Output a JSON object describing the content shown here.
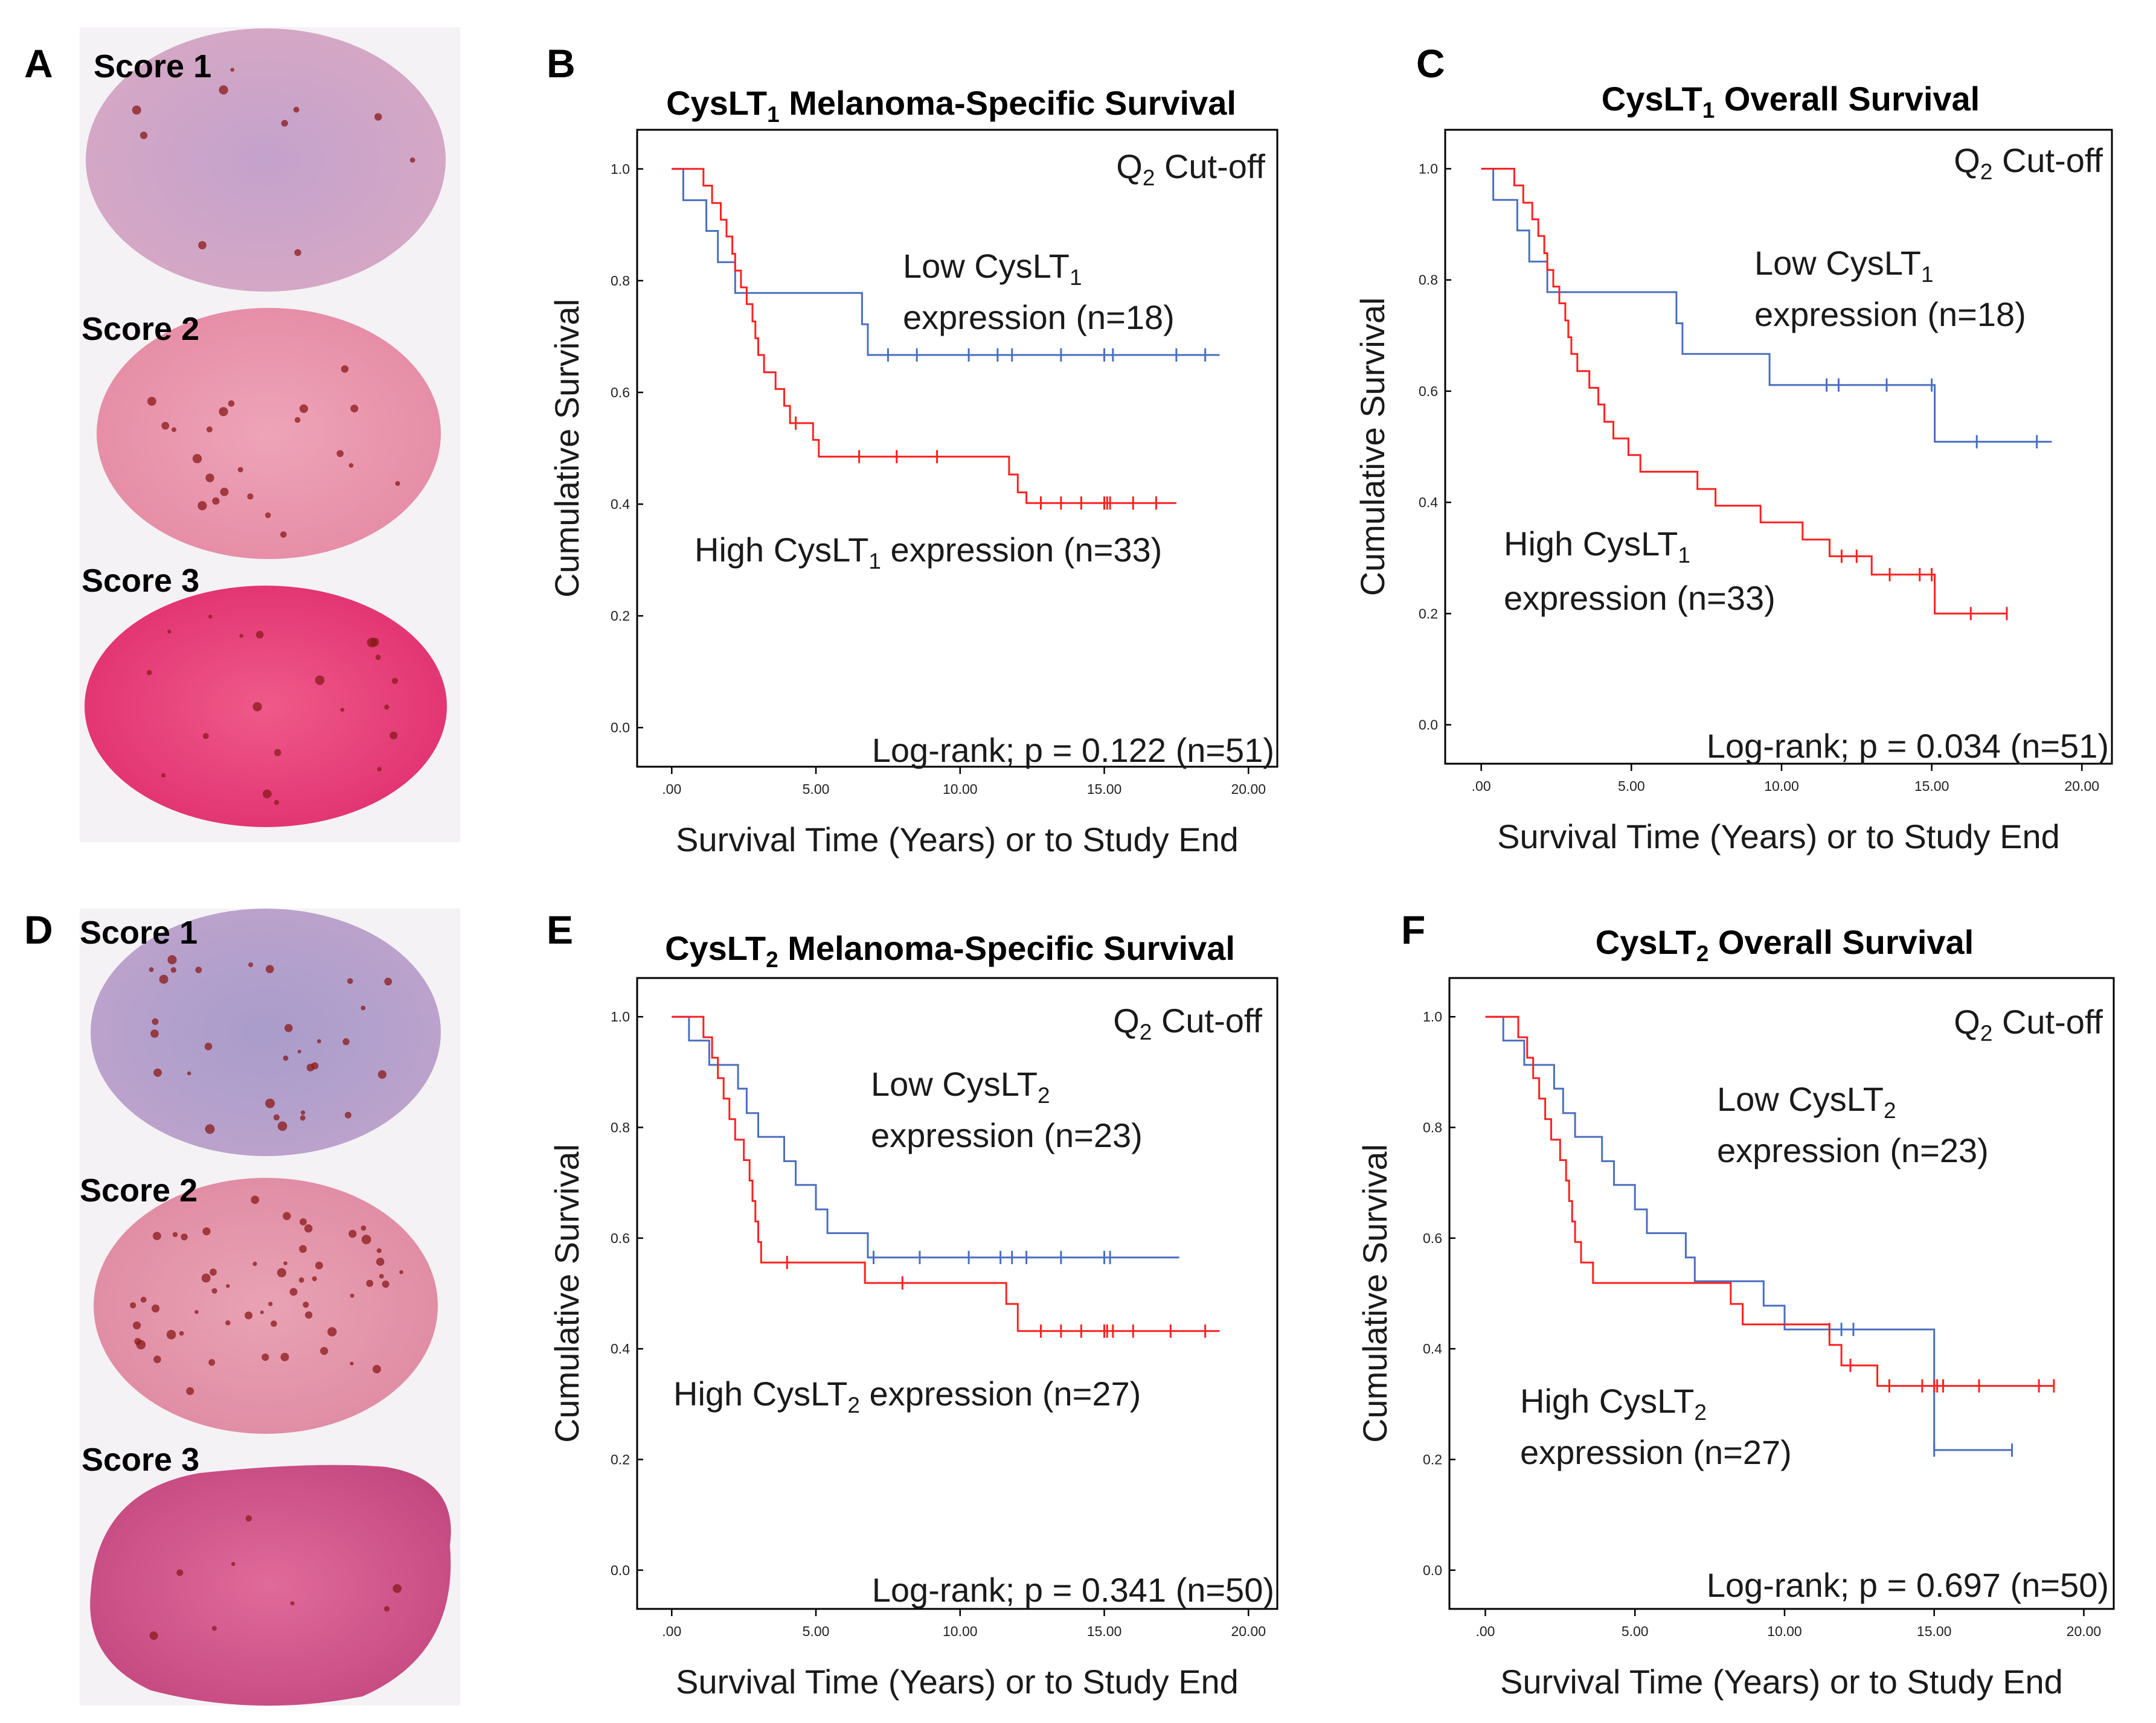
{
  "colors": {
    "low": "#4a6fc0",
    "high": "#ff2020",
    "frame": "#000000",
    "tissue_light": "#d9a9c6",
    "tissue_mid": "#ea8aa8",
    "tissue_dark": "#e8437a",
    "stain_dot": "#8a1a1a"
  },
  "tissue": {
    "cysLT1": {
      "letter": "A",
      "scores": [
        "Score 1",
        "Score 2",
        "Score 3"
      ]
    },
    "cysLT2": {
      "letter": "D",
      "scores": [
        "Score 1",
        "Score 2",
        "Score 3"
      ]
    }
  },
  "chart_data": [
    {
      "letter": "B",
      "type": "line",
      "subtype": "kaplan-meier",
      "title": {
        "pre": "CysLT",
        "sub": "1",
        "post": " Melanoma-Specific Survival"
      },
      "xlabel": "Survival Time (Years) or to Study End",
      "ylabel": "Cumulative Survival",
      "xlim": [
        -1.2,
        21
      ],
      "ylim": [
        -0.07,
        1.07
      ],
      "xticks": [
        0,
        5,
        10,
        15,
        20
      ],
      "xtick_labels": [
        ".00",
        "5.00",
        "10.00",
        "15.00",
        "20.00"
      ],
      "yticks": [
        0,
        0.2,
        0.4,
        0.6,
        0.8,
        1.0
      ],
      "ytick_labels": [
        "0.0",
        "0.2",
        "0.4",
        "0.6",
        "0.8",
        "1.0"
      ],
      "cutoff": {
        "pre": "Q",
        "sub": "2",
        "post": " Cut-off"
      },
      "logrank": "Log-rank; p = 0.122 (n=51)",
      "annotations": [
        {
          "series": "low",
          "lines": [
            {
              "pre": "Low CysLT",
              "sub": "1",
              "post": ""
            },
            {
              "pre": "expression (n=18)",
              "sub": "",
              "post": ""
            }
          ]
        },
        {
          "series": "high",
          "lines": [
            {
              "pre": "High CysLT",
              "sub": "1",
              "post": " expression (n=33)"
            }
          ]
        }
      ],
      "series": [
        {
          "name": "Low",
          "key": "low",
          "steps": [
            [
              0,
              1.0
            ],
            [
              0.4,
              0.944
            ],
            [
              1.2,
              0.889
            ],
            [
              1.6,
              0.833
            ],
            [
              2.2,
              0.778
            ],
            [
              6.6,
              0.722
            ],
            [
              6.8,
              0.667
            ],
            [
              19.0,
              0.667
            ]
          ],
          "censored": [
            7.5,
            8.5,
            10.3,
            11.3,
            11.8,
            13.5,
            15.0,
            15.3,
            17.5,
            18.5
          ]
        },
        {
          "name": "High",
          "key": "high",
          "steps": [
            [
              0,
              1.0
            ],
            [
              1.1,
              0.97
            ],
            [
              1.4,
              0.939
            ],
            [
              1.7,
              0.909
            ],
            [
              1.9,
              0.879
            ],
            [
              2.1,
              0.848
            ],
            [
              2.2,
              0.818
            ],
            [
              2.4,
              0.788
            ],
            [
              2.6,
              0.758
            ],
            [
              2.8,
              0.727
            ],
            [
              2.9,
              0.697
            ],
            [
              3.0,
              0.667
            ],
            [
              3.2,
              0.636
            ],
            [
              3.6,
              0.606
            ],
            [
              3.9,
              0.576
            ],
            [
              4.1,
              0.545
            ],
            [
              4.9,
              0.515
            ],
            [
              5.1,
              0.485
            ],
            [
              11.7,
              0.453
            ],
            [
              12.0,
              0.421
            ],
            [
              12.3,
              0.402
            ],
            [
              17.5,
              0.402
            ]
          ],
          "censored": [
            4.3,
            6.5,
            7.8,
            9.2,
            12.8,
            13.5,
            14.2,
            15.0,
            15.1,
            15.2,
            16.0,
            16.8
          ]
        }
      ]
    },
    {
      "letter": "C",
      "type": "line",
      "subtype": "kaplan-meier",
      "title": {
        "pre": "CysLT",
        "sub": "1",
        "post": " Overall Survival"
      },
      "xlabel": "Survival Time (Years) or to Study End",
      "ylabel": "Cumulative Survival",
      "xlim": [
        -1.2,
        21
      ],
      "ylim": [
        -0.07,
        1.07
      ],
      "xticks": [
        0,
        5,
        10,
        15,
        20
      ],
      "xtick_labels": [
        ".00",
        "5.00",
        "10.00",
        "15.00",
        "20.00"
      ],
      "yticks": [
        0,
        0.2,
        0.4,
        0.6,
        0.8,
        1.0
      ],
      "ytick_labels": [
        "0.0",
        "0.2",
        "0.4",
        "0.6",
        "0.8",
        "1.0"
      ],
      "cutoff": {
        "pre": "Q",
        "sub": "2",
        "post": " Cut-off"
      },
      "logrank": "Log-rank; p = 0.034 (n=51)",
      "annotations": [
        {
          "series": "low",
          "lines": [
            {
              "pre": "Low CysLT",
              "sub": "1",
              "post": ""
            },
            {
              "pre": "expression (n=18)",
              "sub": "",
              "post": ""
            }
          ]
        },
        {
          "series": "high",
          "lines": [
            {
              "pre": "High CysLT",
              "sub": "1",
              "post": ""
            },
            {
              "pre": "expression (n=33)",
              "sub": "",
              "post": ""
            }
          ]
        }
      ],
      "series": [
        {
          "name": "Low",
          "key": "low",
          "steps": [
            [
              0,
              1.0
            ],
            [
              0.4,
              0.944
            ],
            [
              1.2,
              0.889
            ],
            [
              1.6,
              0.833
            ],
            [
              2.2,
              0.778
            ],
            [
              6.5,
              0.722
            ],
            [
              6.7,
              0.667
            ],
            [
              9.6,
              0.611
            ],
            [
              15.1,
              0.509
            ],
            [
              19.0,
              0.509
            ]
          ],
          "censored": [
            11.5,
            11.9,
            13.5,
            15.0,
            16.5,
            18.5
          ]
        },
        {
          "name": "High",
          "key": "high",
          "steps": [
            [
              0,
              1.0
            ],
            [
              1.1,
              0.97
            ],
            [
              1.4,
              0.939
            ],
            [
              1.7,
              0.909
            ],
            [
              1.9,
              0.879
            ],
            [
              2.1,
              0.848
            ],
            [
              2.2,
              0.818
            ],
            [
              2.4,
              0.788
            ],
            [
              2.6,
              0.758
            ],
            [
              2.8,
              0.727
            ],
            [
              2.9,
              0.697
            ],
            [
              3.0,
              0.667
            ],
            [
              3.2,
              0.636
            ],
            [
              3.6,
              0.606
            ],
            [
              3.9,
              0.576
            ],
            [
              4.1,
              0.545
            ],
            [
              4.4,
              0.515
            ],
            [
              4.9,
              0.485
            ],
            [
              5.3,
              0.455
            ],
            [
              7.2,
              0.424
            ],
            [
              7.8,
              0.394
            ],
            [
              9.3,
              0.364
            ],
            [
              10.7,
              0.333
            ],
            [
              11.6,
              0.303
            ],
            [
              13.0,
              0.27
            ],
            [
              15.1,
              0.2
            ],
            [
              17.5,
              0.2
            ]
          ],
          "censored": [
            12.0,
            12.5,
            13.6,
            14.6,
            15.0,
            16.3,
            17.5
          ]
        }
      ]
    },
    {
      "letter": "E",
      "type": "line",
      "subtype": "kaplan-meier",
      "title": {
        "pre": "CysLT",
        "sub": "2",
        "post": " Melanoma-Specific Survival"
      },
      "xlabel": "Survival Time (Years) or to Study End",
      "ylabel": "Cumulative Survival",
      "xlim": [
        -1.2,
        21
      ],
      "ylim": [
        -0.07,
        1.07
      ],
      "xticks": [
        0,
        5,
        10,
        15,
        20
      ],
      "xtick_labels": [
        ".00",
        "5.00",
        "10.00",
        "15.00",
        "20.00"
      ],
      "yticks": [
        0,
        0.2,
        0.4,
        0.6,
        0.8,
        1.0
      ],
      "ytick_labels": [
        "0.0",
        "0.2",
        "0.4",
        "0.6",
        "0.8",
        "1.0"
      ],
      "cutoff": {
        "pre": "Q",
        "sub": "2",
        "post": " Cut-off"
      },
      "logrank": "Log-rank; p = 0.341 (n=50)",
      "annotations": [
        {
          "series": "low",
          "lines": [
            {
              "pre": "Low CysLT",
              "sub": "2",
              "post": ""
            },
            {
              "pre": "expression (n=23)",
              "sub": "",
              "post": ""
            }
          ]
        },
        {
          "series": "high",
          "lines": [
            {
              "pre": "High CysLT",
              "sub": "2",
              "post": " expression (n=27)"
            }
          ]
        }
      ],
      "series": [
        {
          "name": "Low",
          "key": "low",
          "steps": [
            [
              0,
              1.0
            ],
            [
              0.6,
              0.957
            ],
            [
              1.3,
              0.913
            ],
            [
              2.3,
              0.87
            ],
            [
              2.6,
              0.826
            ],
            [
              3.0,
              0.783
            ],
            [
              3.9,
              0.739
            ],
            [
              4.3,
              0.696
            ],
            [
              5.0,
              0.652
            ],
            [
              5.4,
              0.609
            ],
            [
              6.8,
              0.565
            ],
            [
              17.6,
              0.565
            ]
          ],
          "censored": [
            7.0,
            8.6,
            10.3,
            11.4,
            11.8,
            12.3,
            13.5,
            15.0,
            15.2
          ]
        },
        {
          "name": "High",
          "key": "high",
          "steps": [
            [
              0,
              1.0
            ],
            [
              1.1,
              0.963
            ],
            [
              1.4,
              0.926
            ],
            [
              1.6,
              0.889
            ],
            [
              1.8,
              0.852
            ],
            [
              2.0,
              0.815
            ],
            [
              2.2,
              0.778
            ],
            [
              2.5,
              0.741
            ],
            [
              2.7,
              0.704
            ],
            [
              2.8,
              0.667
            ],
            [
              2.9,
              0.63
            ],
            [
              3.0,
              0.593
            ],
            [
              3.1,
              0.556
            ],
            [
              6.7,
              0.519
            ],
            [
              11.6,
              0.481
            ],
            [
              12.0,
              0.432
            ],
            [
              19.0,
              0.432
            ]
          ],
          "censored": [
            4.0,
            8.0,
            12.8,
            13.5,
            14.2,
            15.0,
            15.1,
            15.3,
            16.0,
            17.3,
            18.5
          ]
        }
      ]
    },
    {
      "letter": "F",
      "type": "line",
      "subtype": "kaplan-meier",
      "title": {
        "pre": "CysLT",
        "sub": "2",
        "post": " Overall Survival"
      },
      "xlabel": "Survival Time (Years) or to Study End",
      "ylabel": "Cumulative Survival",
      "xlim": [
        -1.2,
        21
      ],
      "ylim": [
        -0.07,
        1.07
      ],
      "xticks": [
        0,
        5,
        10,
        15,
        20
      ],
      "xtick_labels": [
        ".00",
        "5.00",
        "10.00",
        "15.00",
        "20.00"
      ],
      "yticks": [
        0,
        0.2,
        0.4,
        0.6,
        0.8,
        1.0
      ],
      "ytick_labels": [
        "0.0",
        "0.2",
        "0.4",
        "0.6",
        "0.8",
        "1.0"
      ],
      "cutoff": {
        "pre": "Q",
        "sub": "2",
        "post": " Cut-off"
      },
      "logrank": "Log-rank; p = 0.697 (n=50)",
      "annotations": [
        {
          "series": "low",
          "lines": [
            {
              "pre": "Low CysLT",
              "sub": "2",
              "post": ""
            },
            {
              "pre": "expression (n=23)",
              "sub": "",
              "post": ""
            }
          ]
        },
        {
          "series": "high",
          "lines": [
            {
              "pre": "High CysLT",
              "sub": "2",
              "post": ""
            },
            {
              "pre": "expression (n=27)",
              "sub": "",
              "post": ""
            }
          ]
        }
      ],
      "series": [
        {
          "name": "Low",
          "key": "low",
          "steps": [
            [
              0,
              1.0
            ],
            [
              0.6,
              0.957
            ],
            [
              1.3,
              0.913
            ],
            [
              2.3,
              0.87
            ],
            [
              2.6,
              0.826
            ],
            [
              3.0,
              0.783
            ],
            [
              3.9,
              0.739
            ],
            [
              4.3,
              0.696
            ],
            [
              5.0,
              0.652
            ],
            [
              5.4,
              0.609
            ],
            [
              6.7,
              0.565
            ],
            [
              7.0,
              0.522
            ],
            [
              9.3,
              0.478
            ],
            [
              10.0,
              0.435
            ],
            [
              15.0,
              0.217
            ],
            [
              17.6,
              0.217
            ]
          ],
          "censored": [
            11.5,
            11.9,
            12.3,
            15.0,
            17.6
          ]
        },
        {
          "name": "High",
          "key": "high",
          "steps": [
            [
              0,
              1.0
            ],
            [
              1.1,
              0.963
            ],
            [
              1.4,
              0.926
            ],
            [
              1.6,
              0.889
            ],
            [
              1.8,
              0.852
            ],
            [
              2.0,
              0.815
            ],
            [
              2.2,
              0.778
            ],
            [
              2.5,
              0.741
            ],
            [
              2.7,
              0.704
            ],
            [
              2.8,
              0.667
            ],
            [
              2.9,
              0.63
            ],
            [
              3.0,
              0.593
            ],
            [
              3.2,
              0.556
            ],
            [
              3.6,
              0.519
            ],
            [
              8.2,
              0.481
            ],
            [
              8.6,
              0.444
            ],
            [
              11.5,
              0.407
            ],
            [
              11.9,
              0.37
            ],
            [
              13.1,
              0.333
            ],
            [
              19.0,
              0.333
            ]
          ],
          "censored": [
            12.2,
            13.5,
            14.6,
            15.0,
            15.1,
            15.3,
            16.5,
            18.5,
            19.0
          ]
        }
      ]
    }
  ]
}
